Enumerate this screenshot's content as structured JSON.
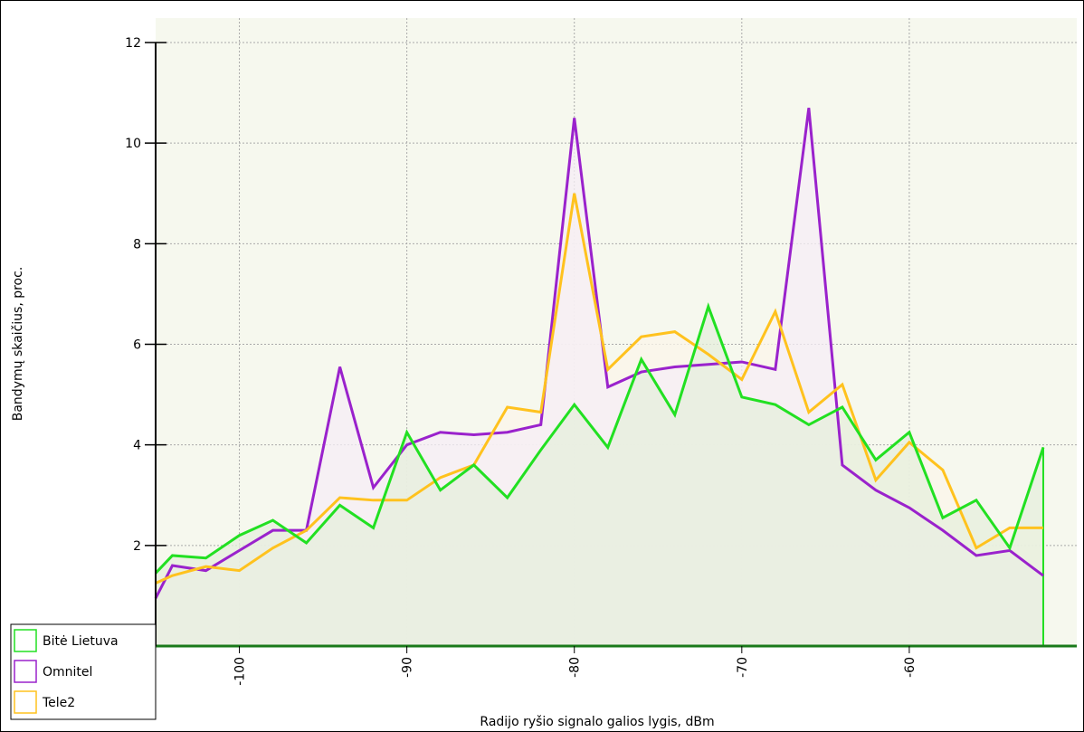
{
  "chart_data": {
    "type": "area",
    "x_label": "Radijo ryšio signalo galios lygis, dBm",
    "y_label": "Bandymų skaičius, proc.",
    "x": [
      -105,
      -104,
      -102,
      -100,
      -98,
      -96,
      -94,
      -92,
      -90,
      -88,
      -86,
      -84,
      -82,
      -80,
      -78,
      -76,
      -74,
      -72,
      -70,
      -68,
      -66,
      -64,
      -62,
      -60,
      -58,
      -56,
      -54,
      -52
    ],
    "series": [
      {
        "name": "Bitė Lietuva",
        "color": "#22e022",
        "fill": "#e6efdc",
        "values": [
          1.45,
          1.8,
          1.75,
          2.2,
          2.5,
          2.05,
          2.8,
          2.35,
          4.25,
          3.1,
          3.6,
          2.95,
          3.9,
          4.8,
          3.95,
          5.7,
          4.6,
          6.75,
          4.95,
          4.8,
          4.4,
          4.75,
          3.7,
          4.25,
          2.55,
          2.9,
          1.95,
          3.95
        ]
      },
      {
        "name": "Omnitel",
        "color": "#9a22cc",
        "fill": "#f5eef5",
        "values": [
          0.95,
          1.6,
          1.5,
          1.9,
          2.3,
          2.3,
          5.55,
          3.15,
          4.0,
          4.25,
          4.2,
          4.25,
          4.4,
          10.5,
          5.15,
          5.45,
          5.55,
          5.6,
          5.65,
          5.5,
          10.7,
          3.6,
          3.1,
          2.75,
          2.3,
          1.8,
          1.9,
          1.4
        ]
      },
      {
        "name": "Tele2",
        "color": "#ffc21e",
        "fill": "#fbf5ea",
        "values": [
          1.25,
          1.4,
          1.58,
          1.5,
          1.95,
          2.3,
          2.95,
          2.9,
          2.9,
          3.35,
          3.6,
          4.75,
          4.65,
          9.0,
          5.5,
          6.15,
          6.25,
          5.8,
          5.3,
          6.65,
          4.65,
          5.2,
          3.3,
          4.05,
          3.5,
          1.95,
          2.35,
          2.35
        ]
      }
    ],
    "xlim": [
      -105,
      -50
    ],
    "ylim": [
      0,
      12
    ],
    "xticks": [
      -100,
      -90,
      -80,
      -70,
      -60
    ],
    "yticks": [
      2,
      4,
      6,
      8,
      10,
      12
    ],
    "grid": true,
    "legend": "bottom-left"
  }
}
